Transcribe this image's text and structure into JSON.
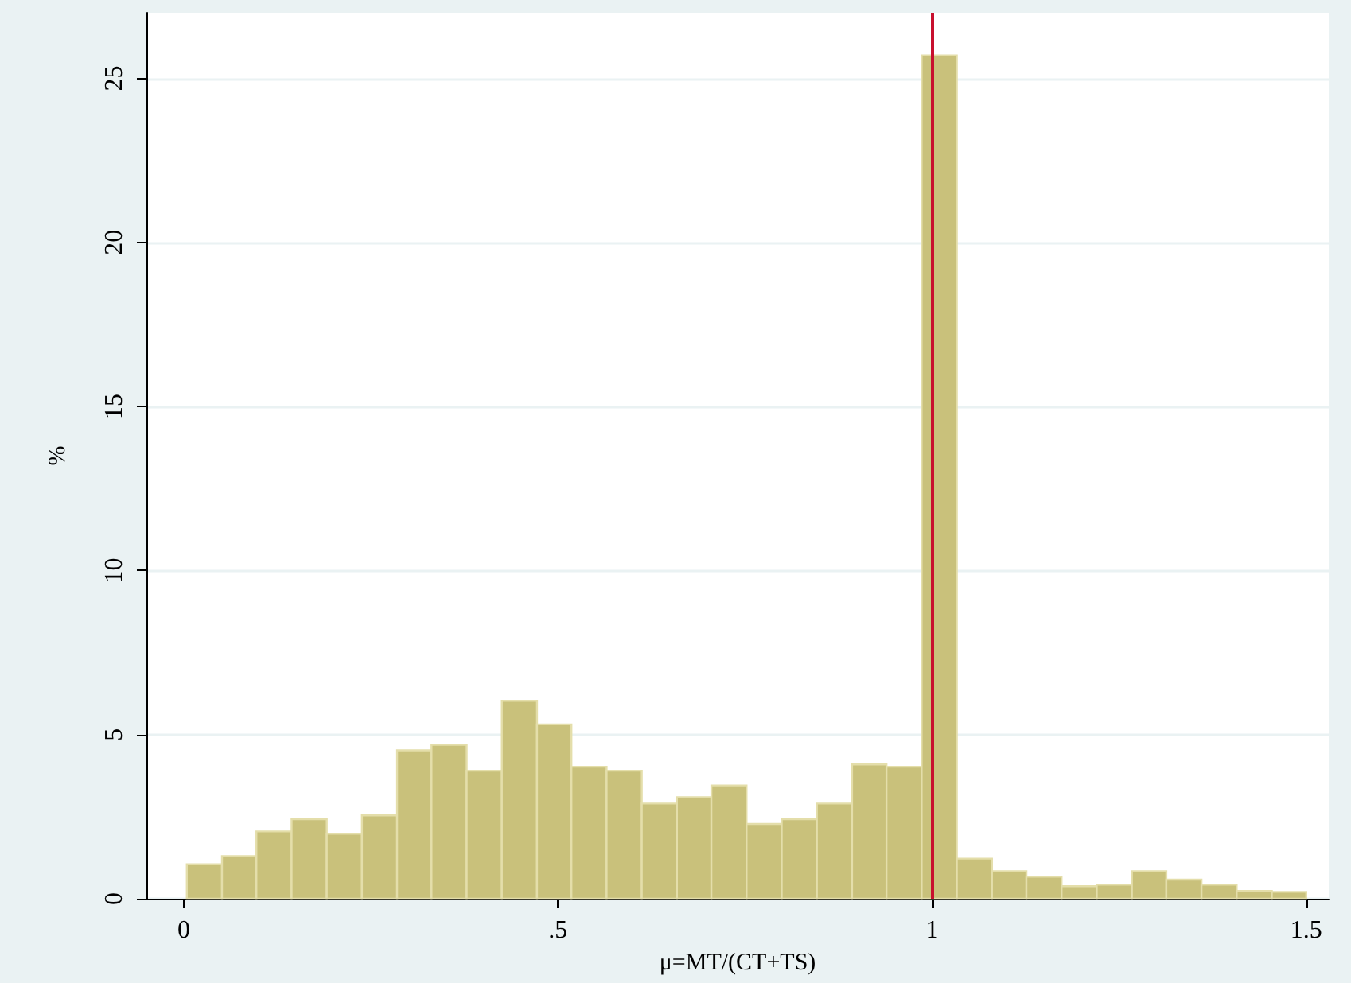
{
  "chart_data": {
    "type": "histogram",
    "xlabel": "μ=MT/(CT+TS)",
    "ylabel": "%",
    "bins": [
      0.004,
      0.051,
      0.097,
      0.144,
      0.191,
      0.238,
      0.285,
      0.331,
      0.378,
      0.425,
      0.472,
      0.518,
      0.565,
      0.612,
      0.659,
      0.705,
      0.752,
      0.799,
      0.846,
      0.893,
      0.939,
      0.986,
      1.033,
      1.08,
      1.126,
      1.173,
      1.22,
      1.267,
      1.313,
      1.36,
      1.407,
      1.454,
      1.5
    ],
    "values": [
      1.05,
      1.3,
      2.05,
      2.42,
      1.98,
      2.54,
      4.52,
      4.69,
      3.9,
      6.03,
      5.31,
      4.02,
      3.9,
      2.9,
      3.09,
      3.45,
      2.28,
      2.42,
      2.9,
      4.09,
      4.02,
      25.7,
      1.22,
      0.84,
      0.67,
      0.38,
      0.43,
      0.84,
      0.58,
      0.43,
      0.24,
      0.21
    ],
    "color": "#c9c17b",
    "xlim": [
      -0.05,
      1.53
    ],
    "xticks": [
      0,
      {
        "value": 0.5,
        "label": ".5"
      },
      1,
      1.5
    ],
    "ylim": [
      0,
      27
    ],
    "yticks": [
      0,
      5,
      10,
      15,
      20,
      25
    ],
    "grid": "y",
    "ref_lines": [
      {
        "axis": "x",
        "value": 1,
        "color": "#c8102e"
      }
    ]
  }
}
